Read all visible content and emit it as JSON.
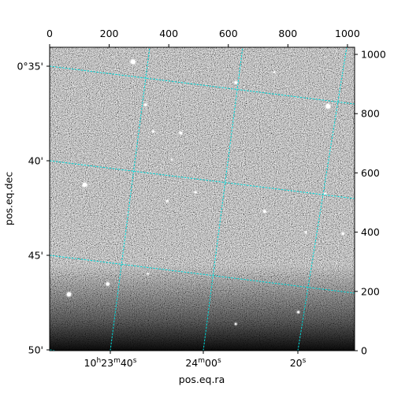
{
  "chart_data": {
    "type": "sky-image",
    "xlabel": "pos.eq.ra",
    "ylabel": "pos.eq.dec",
    "pixel_axes": {
      "x_range": [
        0,
        1024
      ],
      "y_range": [
        0,
        1024
      ],
      "x_ticks": [
        0,
        200,
        400,
        600,
        800,
        1000
      ],
      "y_ticks": [
        0,
        200,
        400,
        600,
        800,
        1000
      ]
    },
    "ra_ticks": [
      {
        "label_h": "10",
        "label_m": "23",
        "label_s": "40",
        "format": "hms"
      },
      {
        "label_m": "24",
        "label_s": "00",
        "format": "ms"
      },
      {
        "label_s": "20",
        "format": "s"
      }
    ],
    "dec_ticks": [
      "0°35'",
      "40'",
      "45'",
      "50'"
    ],
    "grid": true,
    "grid_color": "#00d8d8",
    "image_colormap": "gray",
    "stars": [
      {
        "x": 280,
        "y": 975,
        "r": 3
      },
      {
        "x": 935,
        "y": 825,
        "r": 3
      },
      {
        "x": 118,
        "y": 560,
        "r": 2.8
      },
      {
        "x": 440,
        "y": 735,
        "r": 1.8
      },
      {
        "x": 195,
        "y": 225,
        "r": 2.2
      },
      {
        "x": 65,
        "y": 190,
        "r": 2.8
      },
      {
        "x": 722,
        "y": 470,
        "r": 1.8
      },
      {
        "x": 322,
        "y": 830,
        "r": 1.6
      },
      {
        "x": 625,
        "y": 905,
        "r": 1.6
      },
      {
        "x": 348,
        "y": 740,
        "r": 1.4
      },
      {
        "x": 490,
        "y": 535,
        "r": 1.4
      },
      {
        "x": 395,
        "y": 505,
        "r": 1.3
      },
      {
        "x": 985,
        "y": 395,
        "r": 1.6
      },
      {
        "x": 835,
        "y": 130,
        "r": 1.4
      },
      {
        "x": 925,
        "y": 530,
        "r": 1.2
      },
      {
        "x": 625,
        "y": 90,
        "r": 1.2
      },
      {
        "x": 755,
        "y": 940,
        "r": 1.1
      },
      {
        "x": 860,
        "y": 400,
        "r": 1.1
      },
      {
        "x": 330,
        "y": 260,
        "r": 1.1
      },
      {
        "x": 410,
        "y": 645,
        "r": 1.0
      }
    ]
  }
}
